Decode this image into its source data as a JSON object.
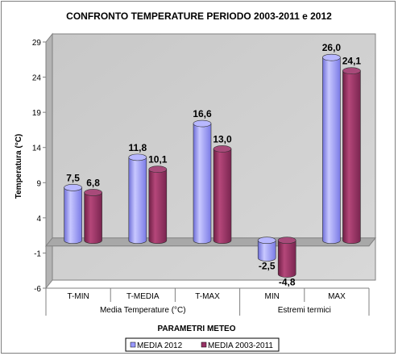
{
  "chart_data": {
    "type": "bar",
    "title": "CONFRONTO TEMPERATURE PERIODO 2003-2011  e 2012",
    "ylabel": "Temperatura (°C)",
    "xlabel": "PARAMETRI METEO",
    "ylim": [
      -6,
      29
    ],
    "y_ticks": [
      -6,
      -1,
      4,
      9,
      14,
      19,
      24,
      29
    ],
    "categories": [
      "T-MIN",
      "T-MEDIA",
      "T-MAX",
      "MIN",
      "MAX"
    ],
    "category_groups": [
      {
        "label": "Media Temperature (°C)",
        "span": 3
      },
      {
        "label": "Estremi termici",
        "span": 2
      }
    ],
    "series": [
      {
        "name": "MEDIA 2012",
        "values": [
          7.5,
          11.8,
          16.6,
          -2.5,
          26.0
        ],
        "labels": [
          "7,5",
          "11,8",
          "16,6",
          "-2,5",
          "26,0"
        ],
        "color": "#9999ff"
      },
      {
        "name": "MEDIA 2003-2011",
        "values": [
          6.8,
          10.1,
          13.0,
          -4.8,
          24.1
        ],
        "labels": [
          "6,8",
          "10,1",
          "13,0",
          "-4,8",
          "24,1"
        ],
        "color": "#993366"
      }
    ],
    "legend_position": "bottom",
    "grid": false,
    "style": "3d-cylinder"
  }
}
